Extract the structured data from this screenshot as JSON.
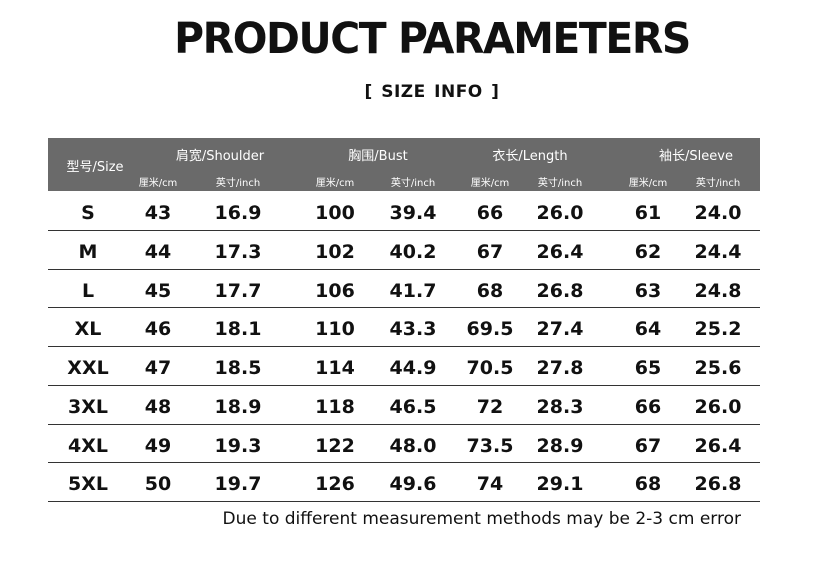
{
  "title": "PRODUCT PARAMETERS",
  "subtitle": "[ SIZE  INFO ]",
  "table": {
    "size_header": "型号/Size",
    "group_headers": [
      "肩宽/Shoulder",
      "胸围/Bust",
      "衣长/Length",
      "袖长/Sleeve"
    ],
    "unit_headers": [
      "厘米/cm",
      "英寸/inch",
      "厘米/cm",
      "英寸/inch",
      "厘米/cm",
      "英寸/inch",
      "厘米/cm",
      "英寸/inch"
    ],
    "rows": [
      [
        "S",
        "43",
        "16.9",
        "100",
        "39.4",
        "66",
        "26.0",
        "61",
        "24.0"
      ],
      [
        "M",
        "44",
        "17.3",
        "102",
        "40.2",
        "67",
        "26.4",
        "62",
        "24.4"
      ],
      [
        "L",
        "45",
        "17.7",
        "106",
        "41.7",
        "68",
        "26.8",
        "63",
        "24.8"
      ],
      [
        "XL",
        "46",
        "18.1",
        "110",
        "43.3",
        "69.5",
        "27.4",
        "64",
        "25.2"
      ],
      [
        "XXL",
        "47",
        "18.5",
        "114",
        "44.9",
        "70.5",
        "27.8",
        "65",
        "25.6"
      ],
      [
        "3XL",
        "48",
        "18.9",
        "118",
        "46.5",
        "72",
        "28.3",
        "66",
        "26.0"
      ],
      [
        "4XL",
        "49",
        "19.3",
        "122",
        "48.0",
        "73.5",
        "28.9",
        "67",
        "26.4"
      ],
      [
        "5XL",
        "50",
        "19.7",
        "126",
        "49.6",
        "74",
        "29.1",
        "68",
        "26.8"
      ]
    ]
  },
  "note": "Due to different measurement methods may be 2-3 cm error"
}
